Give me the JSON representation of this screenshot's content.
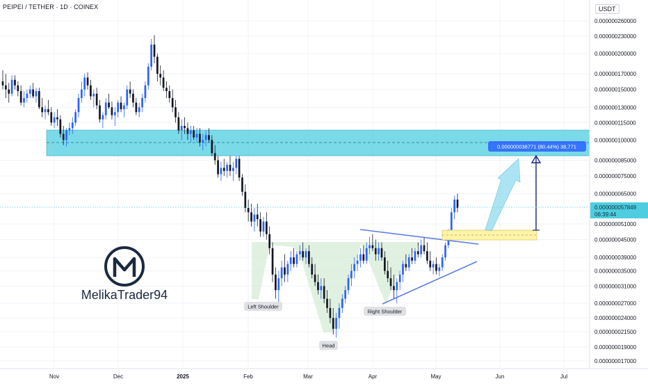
{
  "header": {
    "title": "PEIPEI / TETHER · 1D · COINEX",
    "currency": "USDT"
  },
  "colors": {
    "bull": "#2962ff",
    "bear": "#131722",
    "zone": "#4ecde0",
    "pattern": "#c8e6c9",
    "line": "#5b7de0",
    "arrow": "#7fd6ec"
  },
  "watermark": {
    "name": "MelikaTrader94",
    "icon": "m-logo-icon"
  },
  "chart_data": {
    "type": "candlestick",
    "x_ticks": [
      "Nov",
      "Dec",
      "2025",
      "Feb",
      "Mar",
      "Apr",
      "May",
      "Jun",
      "Jul"
    ],
    "y_ticks": [
      "0.000000260000",
      "0.000000230000",
      "0.000000200000",
      "0.000000170000",
      "0.000000150000",
      "0.000000130000",
      "0.000000115000",
      "0.000000100000",
      "0.000000085000",
      "0.000000075000",
      "0.000000065000",
      "0.000000051000",
      "0.000000045000",
      "0.000000039000",
      "0.000000035000",
      "0.000000031000",
      "0.000000027000",
      "0.000000024000",
      "0.000000021500",
      "0.000000019000",
      "0.000000017000"
    ],
    "log_scale": true,
    "last_price": {
      "value": "0.000000057849",
      "countdown": "06:39:44"
    },
    "measure": {
      "text": "0.000000038771 (80.44%) 38,771"
    },
    "annotations": [
      {
        "key": "left_shoulder",
        "text": "Left Shoulder"
      },
      {
        "key": "head",
        "text": "Head"
      },
      {
        "key": "right_shoulder",
        "text": "Right Shoulder"
      }
    ],
    "candles": [
      {
        "o": 160,
        "h": 175,
        "l": 150,
        "c": 155
      },
      {
        "o": 155,
        "h": 170,
        "l": 140,
        "c": 150
      },
      {
        "o": 150,
        "h": 158,
        "l": 135,
        "c": 145
      },
      {
        "o": 145,
        "h": 168,
        "l": 142,
        "c": 162
      },
      {
        "o": 162,
        "h": 168,
        "l": 150,
        "c": 155
      },
      {
        "o": 155,
        "h": 160,
        "l": 142,
        "c": 148
      },
      {
        "o": 148,
        "h": 155,
        "l": 132,
        "c": 135
      },
      {
        "o": 135,
        "h": 148,
        "l": 130,
        "c": 140
      },
      {
        "o": 140,
        "h": 150,
        "l": 135,
        "c": 145
      },
      {
        "o": 145,
        "h": 155,
        "l": 140,
        "c": 150
      },
      {
        "o": 150,
        "h": 158,
        "l": 140,
        "c": 142
      },
      {
        "o": 142,
        "h": 152,
        "l": 135,
        "c": 148
      },
      {
        "o": 148,
        "h": 152,
        "l": 128,
        "c": 130
      },
      {
        "o": 130,
        "h": 140,
        "l": 120,
        "c": 125
      },
      {
        "o": 125,
        "h": 132,
        "l": 118,
        "c": 128
      },
      {
        "o": 128,
        "h": 138,
        "l": 122,
        "c": 125
      },
      {
        "o": 125,
        "h": 130,
        "l": 112,
        "c": 115
      },
      {
        "o": 115,
        "h": 125,
        "l": 110,
        "c": 120
      },
      {
        "o": 120,
        "h": 128,
        "l": 112,
        "c": 118
      },
      {
        "o": 118,
        "h": 122,
        "l": 102,
        "c": 105
      },
      {
        "o": 105,
        "h": 112,
        "l": 96,
        "c": 100
      },
      {
        "o": 100,
        "h": 110,
        "l": 95,
        "c": 108
      },
      {
        "o": 108,
        "h": 115,
        "l": 104,
        "c": 110
      },
      {
        "o": 110,
        "h": 120,
        "l": 105,
        "c": 115
      },
      {
        "o": 115,
        "h": 128,
        "l": 112,
        "c": 125
      },
      {
        "o": 125,
        "h": 145,
        "l": 120,
        "c": 140
      },
      {
        "o": 140,
        "h": 160,
        "l": 135,
        "c": 150
      },
      {
        "o": 150,
        "h": 170,
        "l": 142,
        "c": 165
      },
      {
        "o": 165,
        "h": 172,
        "l": 150,
        "c": 155
      },
      {
        "o": 155,
        "h": 162,
        "l": 138,
        "c": 142
      },
      {
        "o": 142,
        "h": 150,
        "l": 130,
        "c": 145
      },
      {
        "o": 145,
        "h": 152,
        "l": 128,
        "c": 132
      },
      {
        "o": 132,
        "h": 138,
        "l": 115,
        "c": 118
      },
      {
        "o": 118,
        "h": 125,
        "l": 110,
        "c": 122
      },
      {
        "o": 122,
        "h": 140,
        "l": 118,
        "c": 135
      },
      {
        "o": 135,
        "h": 145,
        "l": 128,
        "c": 130
      },
      {
        "o": 130,
        "h": 136,
        "l": 118,
        "c": 122
      },
      {
        "o": 122,
        "h": 130,
        "l": 112,
        "c": 125
      },
      {
        "o": 125,
        "h": 138,
        "l": 120,
        "c": 135
      },
      {
        "o": 135,
        "h": 142,
        "l": 125,
        "c": 128
      },
      {
        "o": 128,
        "h": 135,
        "l": 120,
        "c": 132
      },
      {
        "o": 132,
        "h": 155,
        "l": 128,
        "c": 150
      },
      {
        "o": 150,
        "h": 160,
        "l": 140,
        "c": 145
      },
      {
        "o": 145,
        "h": 150,
        "l": 130,
        "c": 135
      },
      {
        "o": 135,
        "h": 140,
        "l": 122,
        "c": 125
      },
      {
        "o": 125,
        "h": 135,
        "l": 120,
        "c": 130
      },
      {
        "o": 130,
        "h": 145,
        "l": 125,
        "c": 140
      },
      {
        "o": 140,
        "h": 160,
        "l": 135,
        "c": 155
      },
      {
        "o": 155,
        "h": 185,
        "l": 150,
        "c": 180
      },
      {
        "o": 180,
        "h": 225,
        "l": 175,
        "c": 215
      },
      {
        "o": 215,
        "h": 232,
        "l": 185,
        "c": 195
      },
      {
        "o": 195,
        "h": 200,
        "l": 160,
        "c": 170
      },
      {
        "o": 170,
        "h": 182,
        "l": 155,
        "c": 165
      },
      {
        "o": 165,
        "h": 175,
        "l": 148,
        "c": 152
      },
      {
        "o": 152,
        "h": 160,
        "l": 140,
        "c": 148
      },
      {
        "o": 148,
        "h": 155,
        "l": 135,
        "c": 140
      },
      {
        "o": 140,
        "h": 150,
        "l": 125,
        "c": 130
      },
      {
        "o": 130,
        "h": 138,
        "l": 115,
        "c": 120
      },
      {
        "o": 120,
        "h": 125,
        "l": 105,
        "c": 108
      },
      {
        "o": 108,
        "h": 118,
        "l": 100,
        "c": 112
      },
      {
        "o": 112,
        "h": 120,
        "l": 105,
        "c": 110
      },
      {
        "o": 110,
        "h": 115,
        "l": 100,
        "c": 105
      },
      {
        "o": 105,
        "h": 112,
        "l": 98,
        "c": 108
      },
      {
        "o": 108,
        "h": 112,
        "l": 100,
        "c": 102
      },
      {
        "o": 102,
        "h": 110,
        "l": 98,
        "c": 105
      },
      {
        "o": 105,
        "h": 110,
        "l": 95,
        "c": 98
      },
      {
        "o": 98,
        "h": 105,
        "l": 92,
        "c": 100
      },
      {
        "o": 100,
        "h": 108,
        "l": 95,
        "c": 104
      },
      {
        "o": 104,
        "h": 110,
        "l": 98,
        "c": 100
      },
      {
        "o": 100,
        "h": 104,
        "l": 88,
        "c": 90
      },
      {
        "o": 90,
        "h": 96,
        "l": 82,
        "c": 85
      },
      {
        "o": 85,
        "h": 88,
        "l": 74,
        "c": 76
      },
      {
        "o": 76,
        "h": 84,
        "l": 72,
        "c": 80
      },
      {
        "o": 80,
        "h": 86,
        "l": 75,
        "c": 78
      },
      {
        "o": 78,
        "h": 84,
        "l": 74,
        "c": 82
      },
      {
        "o": 82,
        "h": 88,
        "l": 75,
        "c": 78
      },
      {
        "o": 78,
        "h": 84,
        "l": 72,
        "c": 80
      },
      {
        "o": 80,
        "h": 88,
        "l": 76,
        "c": 86
      },
      {
        "o": 86,
        "h": 88,
        "l": 72,
        "c": 74
      },
      {
        "o": 74,
        "h": 76,
        "l": 64,
        "c": 66
      },
      {
        "o": 66,
        "h": 70,
        "l": 56,
        "c": 58
      },
      {
        "o": 58,
        "h": 62,
        "l": 52,
        "c": 56
      },
      {
        "o": 56,
        "h": 60,
        "l": 50,
        "c": 52
      },
      {
        "o": 52,
        "h": 58,
        "l": 48,
        "c": 55
      },
      {
        "o": 55,
        "h": 60,
        "l": 50,
        "c": 53
      },
      {
        "o": 53,
        "h": 56,
        "l": 46,
        "c": 48
      },
      {
        "o": 48,
        "h": 54,
        "l": 46,
        "c": 52
      },
      {
        "o": 52,
        "h": 56,
        "l": 45,
        "c": 47
      },
      {
        "o": 47,
        "h": 50,
        "l": 40,
        "c": 42
      },
      {
        "o": 42,
        "h": 44,
        "l": 32,
        "c": 34
      },
      {
        "o": 34,
        "h": 36,
        "l": 28,
        "c": 30
      },
      {
        "o": 30,
        "h": 35,
        "l": 27,
        "c": 33
      },
      {
        "o": 33,
        "h": 38,
        "l": 31,
        "c": 36
      },
      {
        "o": 36,
        "h": 40,
        "l": 32,
        "c": 34
      },
      {
        "o": 34,
        "h": 38,
        "l": 32,
        "c": 37
      },
      {
        "o": 37,
        "h": 41,
        "l": 35,
        "c": 39
      },
      {
        "o": 39,
        "h": 42,
        "l": 36,
        "c": 37
      },
      {
        "o": 37,
        "h": 41,
        "l": 36,
        "c": 40
      },
      {
        "o": 40,
        "h": 43,
        "l": 38,
        "c": 41
      },
      {
        "o": 41,
        "h": 44,
        "l": 38,
        "c": 39
      },
      {
        "o": 39,
        "h": 42,
        "l": 37,
        "c": 41
      },
      {
        "o": 41,
        "h": 43,
        "l": 36,
        "c": 37
      },
      {
        "o": 37,
        "h": 39,
        "l": 33,
        "c": 34
      },
      {
        "o": 34,
        "h": 37,
        "l": 31,
        "c": 32
      },
      {
        "o": 32,
        "h": 34,
        "l": 29,
        "c": 30
      },
      {
        "o": 30,
        "h": 33,
        "l": 28,
        "c": 31
      },
      {
        "o": 31,
        "h": 33,
        "l": 27,
        "c": 28
      },
      {
        "o": 28,
        "h": 30,
        "l": 25,
        "c": 26
      },
      {
        "o": 26,
        "h": 28,
        "l": 23,
        "c": 24
      },
      {
        "o": 24,
        "h": 26,
        "l": 21,
        "c": 22
      },
      {
        "o": 22,
        "h": 25,
        "l": 20.5,
        "c": 24
      },
      {
        "o": 24,
        "h": 27,
        "l": 22,
        "c": 26
      },
      {
        "o": 26,
        "h": 29,
        "l": 25,
        "c": 28
      },
      {
        "o": 28,
        "h": 31,
        "l": 27,
        "c": 30
      },
      {
        "o": 30,
        "h": 34,
        "l": 29,
        "c": 33
      },
      {
        "o": 33,
        "h": 37,
        "l": 31,
        "c": 35
      },
      {
        "o": 35,
        "h": 39,
        "l": 33,
        "c": 37
      },
      {
        "o": 37,
        "h": 40,
        "l": 35,
        "c": 38
      },
      {
        "o": 38,
        "h": 42,
        "l": 36,
        "c": 40
      },
      {
        "o": 40,
        "h": 43,
        "l": 37,
        "c": 38
      },
      {
        "o": 38,
        "h": 44,
        "l": 37,
        "c": 42
      },
      {
        "o": 42,
        "h": 46,
        "l": 40,
        "c": 43
      },
      {
        "o": 43,
        "h": 47,
        "l": 41,
        "c": 42
      },
      {
        "o": 42,
        "h": 45,
        "l": 38,
        "c": 40
      },
      {
        "o": 40,
        "h": 44,
        "l": 38,
        "c": 42
      },
      {
        "o": 42,
        "h": 44,
        "l": 38,
        "c": 39
      },
      {
        "o": 39,
        "h": 41,
        "l": 34,
        "c": 35
      },
      {
        "o": 35,
        "h": 38,
        "l": 32,
        "c": 33
      },
      {
        "o": 33,
        "h": 36,
        "l": 30,
        "c": 31
      },
      {
        "o": 31,
        "h": 34,
        "l": 28,
        "c": 30
      },
      {
        "o": 30,
        "h": 33,
        "l": 27,
        "c": 32
      },
      {
        "o": 32,
        "h": 35,
        "l": 30,
        "c": 34
      },
      {
        "o": 34,
        "h": 38,
        "l": 32,
        "c": 37
      },
      {
        "o": 37,
        "h": 40,
        "l": 35,
        "c": 36
      },
      {
        "o": 36,
        "h": 40,
        "l": 35,
        "c": 39
      },
      {
        "o": 39,
        "h": 42,
        "l": 37,
        "c": 38
      },
      {
        "o": 38,
        "h": 42,
        "l": 37,
        "c": 41
      },
      {
        "o": 41,
        "h": 44,
        "l": 39,
        "c": 40
      },
      {
        "o": 40,
        "h": 45,
        "l": 39,
        "c": 43
      },
      {
        "o": 43,
        "h": 46,
        "l": 40,
        "c": 41
      },
      {
        "o": 41,
        "h": 44,
        "l": 37,
        "c": 38
      },
      {
        "o": 38,
        "h": 41,
        "l": 35,
        "c": 36
      },
      {
        "o": 36,
        "h": 38,
        "l": 34,
        "c": 37
      },
      {
        "o": 37,
        "h": 39,
        "l": 34,
        "c": 35
      },
      {
        "o": 35,
        "h": 37,
        "l": 33.5,
        "c": 36
      },
      {
        "o": 36,
        "h": 40,
        "l": 35,
        "c": 39
      },
      {
        "o": 39,
        "h": 44,
        "l": 38,
        "c": 43
      },
      {
        "o": 43,
        "h": 49,
        "l": 42,
        "c": 48
      },
      {
        "o": 48,
        "h": 58,
        "l": 46,
        "c": 56
      },
      {
        "o": 56,
        "h": 64,
        "l": 53,
        "c": 62
      },
      {
        "o": 62,
        "h": 65,
        "l": 56,
        "c": 58
      }
    ]
  }
}
